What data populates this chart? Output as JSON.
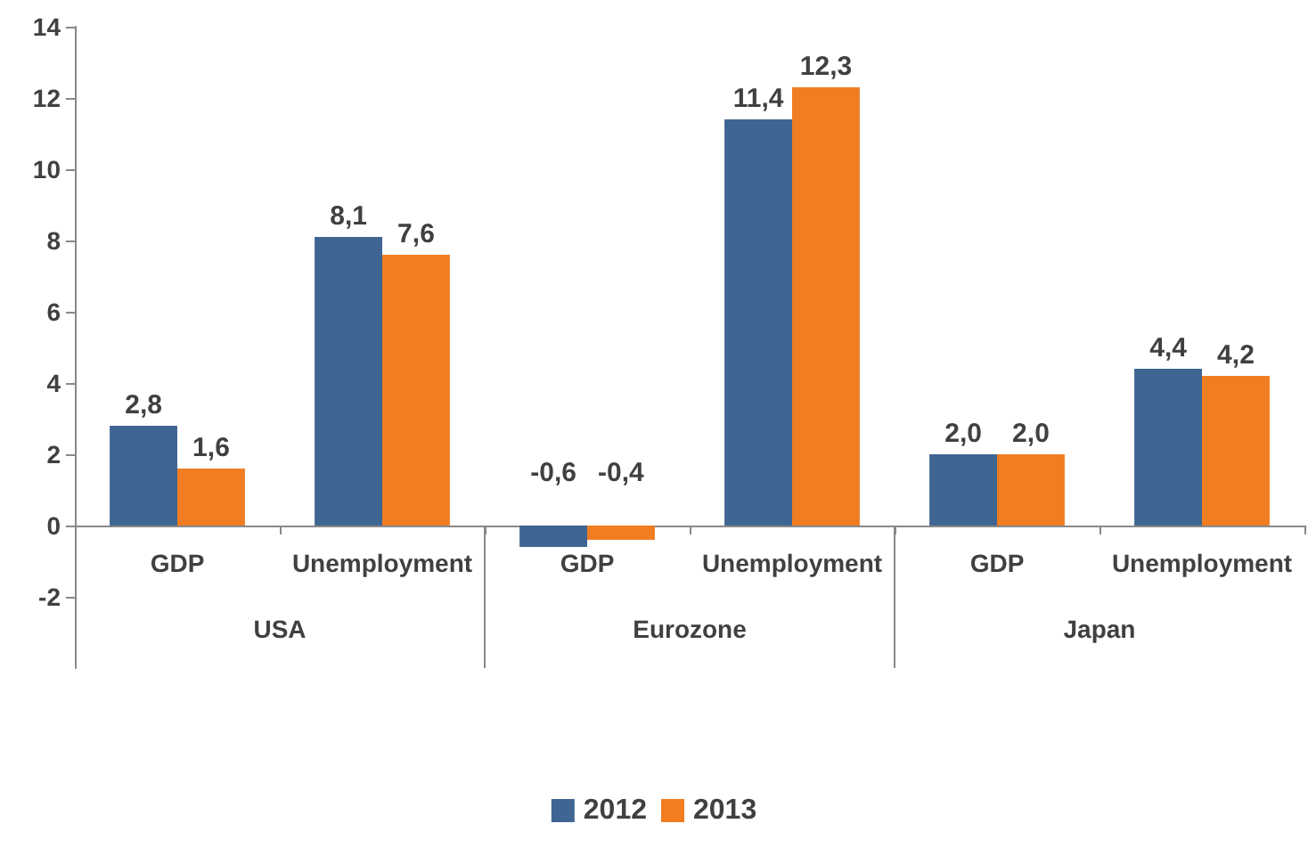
{
  "chart_data": {
    "type": "bar",
    "categories": [
      "GDP",
      "Unemployment",
      "GDP",
      "Unemployment",
      "GDP",
      "Unemployment"
    ],
    "annotations": [
      "USA",
      "Eurozone",
      "Japan"
    ],
    "series": [
      {
        "name": "2012",
        "color": "#3f6592",
        "values": [
          2.8,
          8.1,
          -0.6,
          11.4,
          2.0,
          4.4
        ],
        "value_labels": [
          "2,8",
          "8,1",
          "-0,6",
          "11,4",
          "2,0",
          "4,4"
        ]
      },
      {
        "name": "2013",
        "color": "#f07d22",
        "values": [
          1.6,
          7.6,
          -0.4,
          12.3,
          2.0,
          4.2
        ],
        "value_labels": [
          "1,6",
          "7,6",
          "-0,4",
          "12,3",
          "2,0",
          "4,2"
        ]
      }
    ],
    "ylim": [
      -4,
      14
    ],
    "yticks": [
      -2,
      0,
      2,
      4,
      6,
      8,
      10,
      12,
      14
    ],
    "grid": false,
    "legend": "bottom"
  }
}
